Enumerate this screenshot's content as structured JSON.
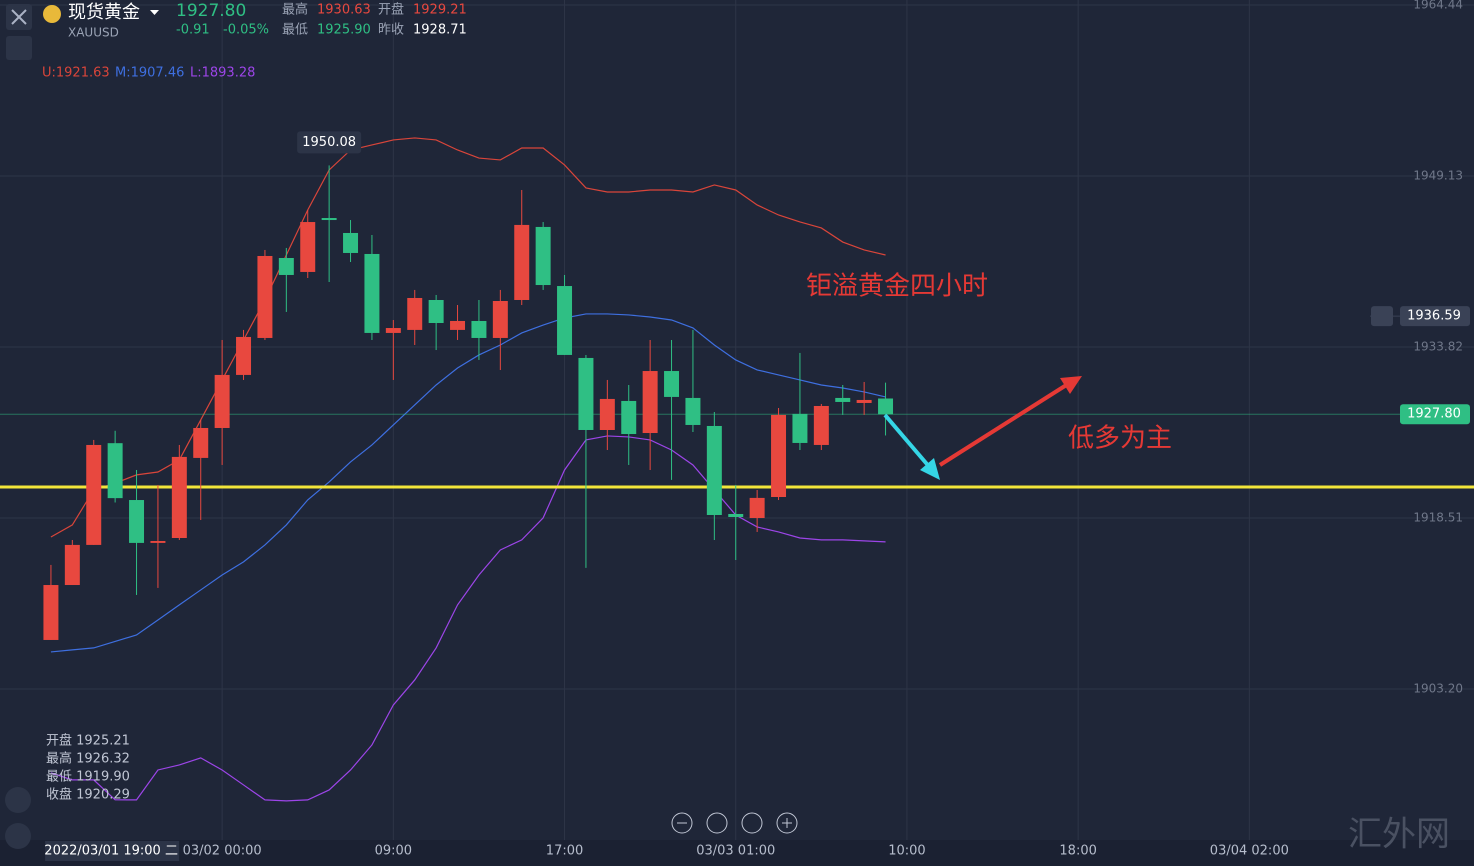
{
  "header": {
    "name": "现货黄金",
    "symbol": "XAUUSD",
    "price": "1927.80",
    "change": "-0.91",
    "change_pct": "-0.05%",
    "stats": [
      {
        "label": "最高",
        "value": "1930.63"
      },
      {
        "label": "开盘",
        "value": "1929.21"
      },
      {
        "label": "最低",
        "value": "1925.90"
      },
      {
        "label": "昨收",
        "value": "1928.71"
      }
    ]
  },
  "chart_data": {
    "type": "candlestick",
    "x": [
      0,
      1,
      2,
      3,
      4,
      5,
      6,
      7,
      8,
      9,
      10,
      11,
      12,
      13,
      14,
      15,
      16,
      17,
      18,
      19,
      20,
      21,
      22,
      23,
      24,
      25,
      26,
      27,
      28,
      29,
      30,
      31,
      32,
      33,
      34,
      35,
      36,
      37,
      38,
      39
    ],
    "open": [
      1907.59,
      1912.51,
      1916.1,
      1925.21,
      1920.12,
      1916.28,
      1916.72,
      1923.89,
      1926.57,
      1931.32,
      1934.63,
      1941.79,
      1940.54,
      1945.37,
      1944.03,
      1942.15,
      1935.08,
      1935.35,
      1938.03,
      1935.35,
      1936.15,
      1934.63,
      1938.03,
      1944.57,
      1939.28,
      1932.84,
      1926.39,
      1928.99,
      1926.12,
      1931.67,
      1929.26,
      1926.75,
      1918.87,
      1918.51,
      1920.39,
      1927.83,
      1925.05,
      1929.26,
      1928.81,
      1929.21
    ],
    "high": [
      1914.31,
      1916.54,
      1925.5,
      1926.32,
      1922.81,
      1921.47,
      1925.05,
      1927.29,
      1934.45,
      1935.35,
      1942.51,
      1942.69,
      1946.09,
      1950.08,
      1945.19,
      1943.85,
      1936.24,
      1938.93,
      1938.48,
      1937.58,
      1938.03,
      1938.93,
      1947.88,
      1945.01,
      1940.27,
      1933.11,
      1930.87,
      1930.42,
      1934.45,
      1934.45,
      1935.35,
      1928.0,
      1921.47,
      1921.02,
      1928.36,
      1933.29,
      1928.72,
      1930.42,
      1930.69,
      1930.63
    ],
    "low": [
      1907.59,
      1912.51,
      1916.1,
      1919.9,
      1911.62,
      1912.25,
      1916.54,
      1918.33,
      1923.26,
      1930.87,
      1934.45,
      1936.96,
      1940.0,
      1939.64,
      1941.43,
      1934.45,
      1930.87,
      1934.0,
      1933.55,
      1934.45,
      1932.66,
      1931.76,
      1937.58,
      1938.93,
      1933.11,
      1914.04,
      1924.6,
      1923.26,
      1922.81,
      1921.92,
      1926.21,
      1916.54,
      1914.75,
      1917.26,
      1920.12,
      1924.6,
      1924.6,
      1927.74,
      1927.74,
      1925.9
    ],
    "close": [
      1912.51,
      1916.1,
      1925.05,
      1920.29,
      1916.28,
      1916.45,
      1923.98,
      1926.57,
      1931.32,
      1934.72,
      1941.97,
      1940.27,
      1945.01,
      1945.19,
      1942.24,
      1935.08,
      1935.52,
      1938.21,
      1935.97,
      1936.15,
      1934.63,
      1937.94,
      1944.75,
      1939.37,
      1933.11,
      1926.39,
      1929.17,
      1926.03,
      1931.67,
      1929.35,
      1926.84,
      1918.78,
      1918.6,
      1920.31,
      1927.74,
      1925.23,
      1928.54,
      1928.9,
      1929.08,
      1927.8
    ],
    "up_color": "#e8483f",
    "down_color": "#2fbf84",
    "bands": [
      {
        "color": "#d9453a",
        "values": [
          1916.81,
          1917.89,
          1921.02,
          1921.63,
          1922.37,
          1922.63,
          1923.71,
          1927.29,
          1930.87,
          1934.45,
          1938.03,
          1942.06,
          1946.09,
          1949.67,
          1951.46,
          1951.91,
          1952.36,
          1952.54,
          1952.36,
          1951.46,
          1950.74,
          1950.57,
          1951.64,
          1951.64,
          1950.12,
          1948.06,
          1947.7,
          1947.7,
          1947.88,
          1947.88,
          1947.7,
          1948.33,
          1947.88,
          1946.54,
          1945.64,
          1945.02,
          1944.48,
          1943.22,
          1942.51,
          1942.06
        ]
      },
      {
        "color": "#3e6fe0",
        "values": [
          1906.52,
          1906.7,
          1906.88,
          1907.46,
          1908.04,
          1909.38,
          1910.73,
          1912.07,
          1913.41,
          1914.58,
          1916.1,
          1917.89,
          1920.13,
          1921.74,
          1923.53,
          1925.05,
          1926.84,
          1928.63,
          1930.42,
          1931.94,
          1933.11,
          1934.0,
          1935.08,
          1935.79,
          1936.42,
          1936.78,
          1936.78,
          1936.69,
          1936.51,
          1936.24,
          1935.53,
          1934.0,
          1932.66,
          1931.77,
          1931.32,
          1930.87,
          1930.42,
          1930.15,
          1929.8,
          1929.35
        ]
      },
      {
        "color": "#9c45e8",
        "values": [
          1895.69,
          1895.06,
          1895.06,
          1893.28,
          1893.27,
          1895.95,
          1896.4,
          1897.03,
          1895.95,
          1894.61,
          1893.27,
          1893.18,
          1893.27,
          1894.16,
          1895.95,
          1898.19,
          1901.77,
          1904.01,
          1906.88,
          1910.73,
          1913.41,
          1915.65,
          1916.55,
          1918.52,
          1922.81,
          1925.5,
          1925.86,
          1925.77,
          1925.5,
          1924.6,
          1923.26,
          1921.02,
          1918.78,
          1917.71,
          1917.26,
          1916.72,
          1916.55,
          1916.55,
          1916.46,
          1916.37
        ]
      }
    ],
    "band_labels": [
      "U:1921.63",
      "M:1907.46",
      "L:1893.28"
    ],
    "xlim": [
      -2.38,
      63.04
    ],
    "ylim": [
      1889.68,
      1964.89
    ],
    "yticks": [
      {
        "value": 1903.2,
        "label": "1903.20"
      },
      1918.51,
      1933.82,
      1949.13,
      1964.44
    ],
    "xticks": [
      {
        "value": 8,
        "label": "03/02 00:00"
      },
      {
        "value": 16,
        "label": "09:00"
      },
      {
        "value": 24,
        "label": "17:00"
      },
      {
        "value": 32,
        "label": "03/03 01:00"
      },
      {
        "value": 40,
        "label": "10:00"
      },
      {
        "value": 48,
        "label": "18:00"
      },
      {
        "value": 56,
        "label": "03/04 02:00"
      }
    ],
    "grid": true,
    "price_lines": [
      {
        "value": 1927.8,
        "label": "1927.80",
        "color": "#2fbf84"
      },
      {
        "value": 1936.59,
        "label": "1936.59",
        "color": "#3a4256"
      }
    ],
    "support_line": {
      "value": 1921.29,
      "color": "#f2e53a"
    },
    "crosshair": {
      "x": 3,
      "label": "2022/03/01 19:00 二",
      "ohlc_text": [
        "开盘 1925.21",
        "最高 1926.32",
        "最低 1919.90",
        "收盘 1920.29"
      ]
    },
    "high_marker": 13,
    "annotations": [
      "钜溢黄金四小时",
      "低多为主"
    ],
    "watermark": "汇外网"
  }
}
